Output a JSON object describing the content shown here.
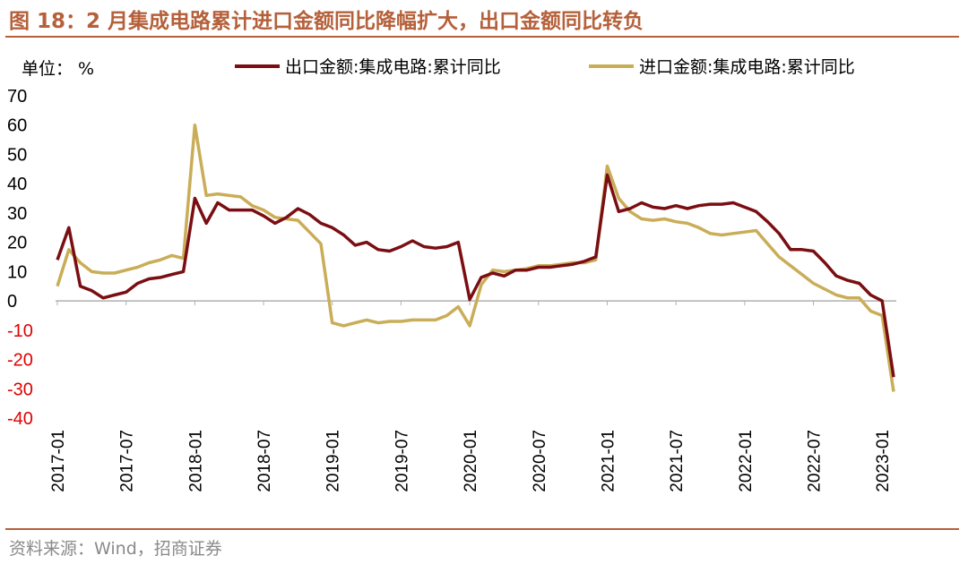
{
  "title": "图 18：2 月集成电路累计进口金额同比降幅扩大，出口金额同比转负",
  "unit_label": "单位： %",
  "source": "资料来源：Wind，招商证券",
  "colors": {
    "export": "#7a0e12",
    "import": "#c9ad57",
    "title": "#b5603a",
    "negative_tick": "#e00000"
  },
  "chart_data": {
    "type": "line",
    "title": "",
    "xlabel": "",
    "ylabel": "%",
    "ylim": [
      -40,
      70
    ],
    "yticks": [
      70,
      60,
      50,
      40,
      30,
      20,
      10,
      0,
      -10,
      -20,
      -30,
      -40
    ],
    "xtick_labels": [
      "2017-01",
      "2017-07",
      "2018-01",
      "2018-07",
      "2019-01",
      "2019-07",
      "2020-01",
      "2020-07",
      "2021-01",
      "2021-07",
      "2022-01",
      "2022-07",
      "2023-01"
    ],
    "x": [
      "2017-01",
      "2017-02",
      "2017-03",
      "2017-04",
      "2017-05",
      "2017-06",
      "2017-07",
      "2017-08",
      "2017-09",
      "2017-10",
      "2017-11",
      "2017-12",
      "2018-01",
      "2018-02",
      "2018-03",
      "2018-04",
      "2018-05",
      "2018-06",
      "2018-07",
      "2018-08",
      "2018-09",
      "2018-10",
      "2018-11",
      "2018-12",
      "2019-01",
      "2019-02",
      "2019-03",
      "2019-04",
      "2019-05",
      "2019-06",
      "2019-07",
      "2019-08",
      "2019-09",
      "2019-10",
      "2019-11",
      "2019-12",
      "2020-01",
      "2020-02",
      "2020-03",
      "2020-04",
      "2020-05",
      "2020-06",
      "2020-07",
      "2020-08",
      "2020-09",
      "2020-10",
      "2020-11",
      "2020-12",
      "2021-01",
      "2021-02",
      "2021-03",
      "2021-04",
      "2021-05",
      "2021-06",
      "2021-07",
      "2021-08",
      "2021-09",
      "2021-10",
      "2021-11",
      "2021-12",
      "2022-01",
      "2022-02",
      "2022-03",
      "2022-04",
      "2022-05",
      "2022-06",
      "2022-07",
      "2022-08",
      "2022-09",
      "2022-10",
      "2022-11",
      "2022-12",
      "2023-01",
      "2023-02"
    ],
    "series": [
      {
        "name": "出口金额:集成电路:累计同比",
        "color_key": "export",
        "values": [
          14,
          25,
          5,
          3.5,
          1,
          2,
          3,
          6,
          7.5,
          8,
          9,
          10,
          35,
          26.5,
          33.5,
          31,
          31,
          31,
          29,
          26.5,
          28.5,
          31.5,
          29.5,
          26.5,
          25,
          22.5,
          19,
          20,
          17.5,
          17,
          18.5,
          20.5,
          18.5,
          18,
          18.5,
          20,
          0.5,
          8,
          9.5,
          8.5,
          10.5,
          10.5,
          11.5,
          11.5,
          12,
          12.5,
          13.5,
          15,
          43,
          30.5,
          31.5,
          33.5,
          32,
          31.5,
          32.5,
          31.5,
          32.5,
          33,
          33,
          33.5,
          32,
          30.5,
          27,
          23,
          17.5,
          17.5,
          17,
          13,
          8.5,
          7,
          6,
          2,
          0,
          -26
        ]
      },
      {
        "name": "进口金额:集成电路:累计同比",
        "color_key": "import",
        "values": [
          5,
          17.5,
          13,
          10,
          9.5,
          9.5,
          10.5,
          11.5,
          13,
          14,
          15.5,
          14.5,
          60,
          36,
          36.5,
          36,
          35.5,
          32.5,
          31,
          28.5,
          28,
          27.5,
          23.5,
          19.5,
          -7.5,
          -8.5,
          -7.5,
          -6.5,
          -7.5,
          -7,
          -7,
          -6.5,
          -6.5,
          -6.5,
          -5,
          -2,
          -8.5,
          5.5,
          10.5,
          10,
          10.5,
          11,
          12,
          12,
          12.5,
          13,
          13,
          14,
          46,
          35,
          30.5,
          28,
          27.5,
          28,
          27,
          26.5,
          25,
          23,
          22.5,
          23,
          23.5,
          24,
          19.5,
          15,
          12,
          9,
          6,
          4,
          2,
          1,
          1,
          -3.5,
          -5,
          -31
        ]
      }
    ],
    "legend_placement": "top",
    "grid": false
  }
}
